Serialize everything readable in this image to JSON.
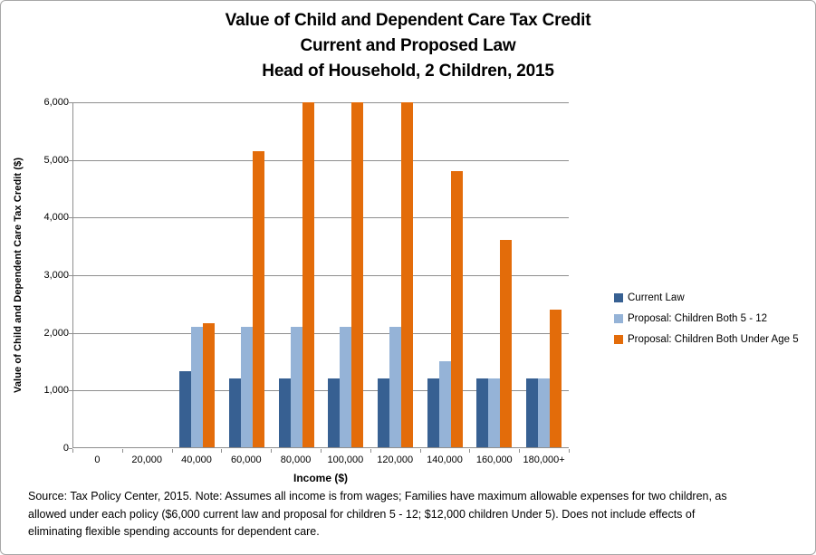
{
  "chart_data": {
    "type": "bar",
    "title_lines": [
      "Value of Child and Dependent Care Tax Credit",
      "Current and Proposed Law",
      "Head of Household, 2 Children, 2015"
    ],
    "categories": [
      "0",
      "20,000",
      "40,000",
      "60,000",
      "80,000",
      "100,000",
      "120,000",
      "140,000",
      "160,000",
      "180,000+"
    ],
    "series": [
      {
        "name": "Current Law",
        "color": "#376092",
        "values": [
          0,
          0,
          1320,
          1200,
          1200,
          1200,
          1200,
          1200,
          1200,
          1200
        ]
      },
      {
        "name": "Proposal: Children Both 5 - 12",
        "color": "#95B3D7",
        "values": [
          0,
          0,
          2100,
          2100,
          2100,
          2100,
          2100,
          1500,
          1200,
          1200
        ]
      },
      {
        "name": "Proposal: Children Both Under Age 5",
        "color": "#E36C0A",
        "values": [
          0,
          0,
          2150,
          5150,
          6000,
          6000,
          6000,
          4800,
          3600,
          2400
        ]
      }
    ],
    "xlabel": "Income ($)",
    "ylabel": "Value of Child and Dependent Care Tax Credit ($)",
    "ylim": [
      0,
      6000
    ],
    "ytick_interval": 1000,
    "ytick_labels": [
      "0",
      "1,000",
      "2,000",
      "3,000",
      "4,000",
      "5,000",
      "6,000"
    ],
    "grid": true,
    "legend_position": "right",
    "gridline_color": "#8e8e8e"
  },
  "footer": {
    "source_lines": [
      "Source: Tax Policy Center, 2015. Note: Assumes all income is from wages; Families have maximum allowable expenses for two children, as",
      "allowed under each policy ($6,000 current law and proposal for children 5 - 12; $12,000  children Under 5). Does not include effects of",
      "eliminating flexible spending accounts for dependent care."
    ]
  }
}
